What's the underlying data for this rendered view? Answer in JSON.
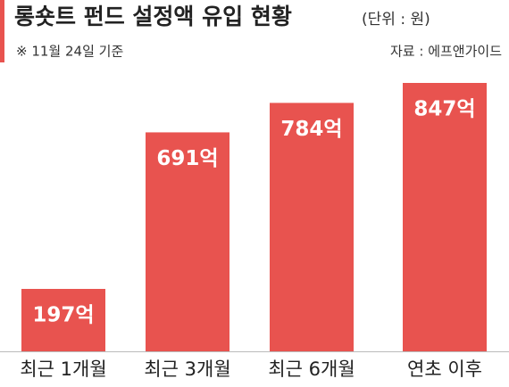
{
  "chart_data": {
    "type": "bar",
    "title": "롱숏트 펀드 설정액 유입 현황",
    "subtitle": "(단위 : 원)",
    "note": "※ 11월 24일 기준",
    "source": "자료 : 에프앤가이드",
    "categories": [
      "최근 1개월",
      "최근 3개월",
      "최근 6개월",
      "연초 이후"
    ],
    "values": [
      197,
      691,
      784,
      847
    ],
    "value_labels": [
      "197억",
      "691억",
      "784억",
      "847억"
    ],
    "color": "#e8534f"
  }
}
